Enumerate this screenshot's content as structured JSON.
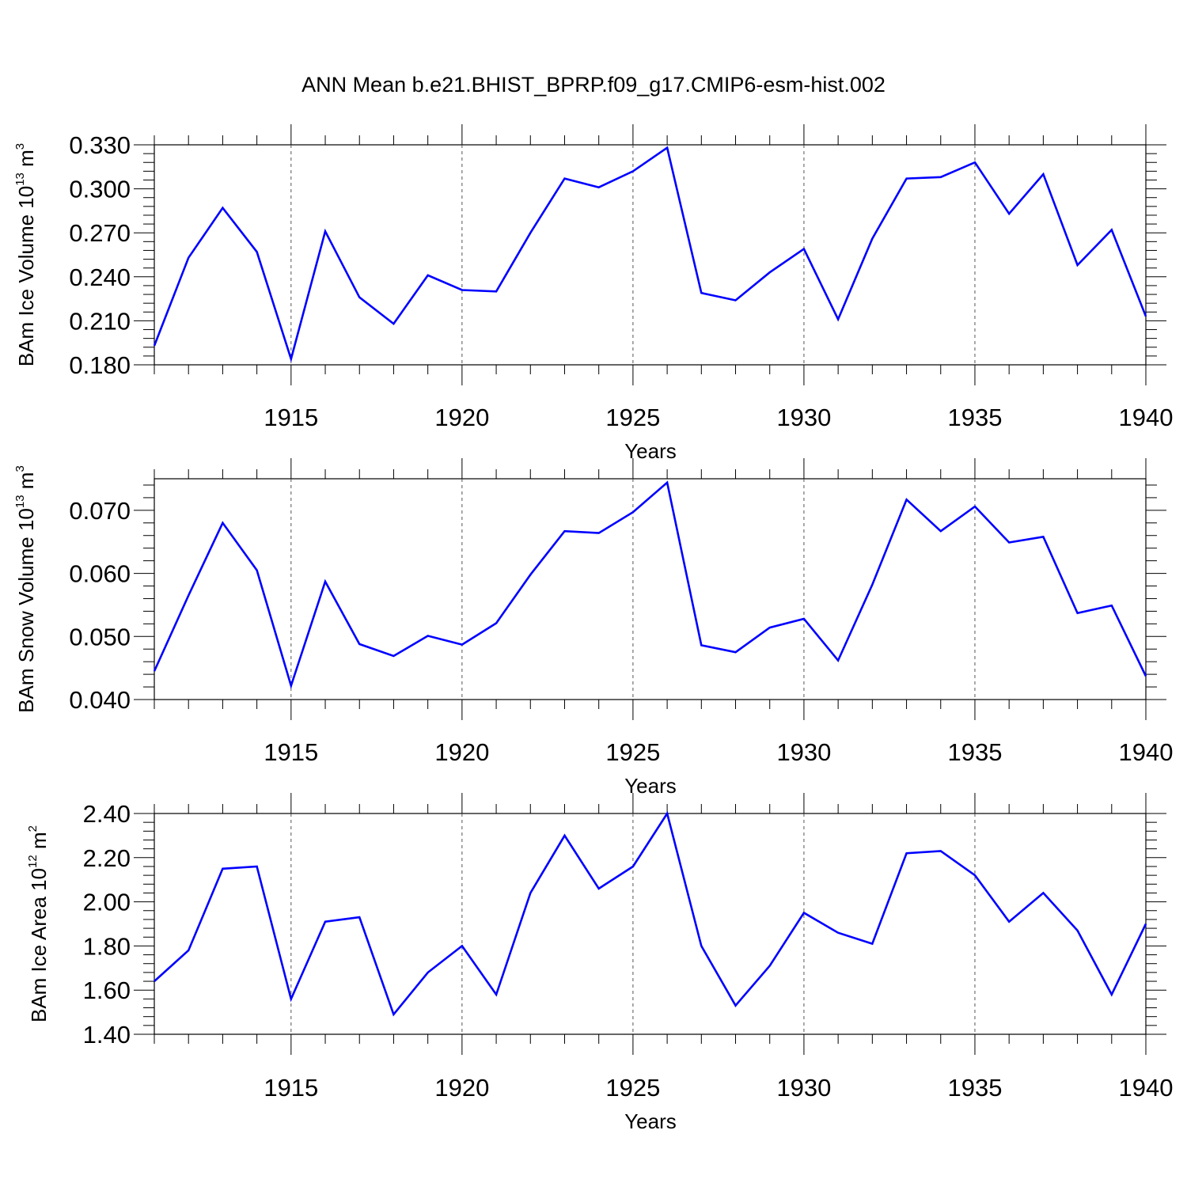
{
  "title": "ANN Mean b.e21.BHIST_BPRP.f09_g17.CMIP6-esm-hist.002",
  "colors": {
    "line": "#0000ff",
    "axis": "#000000",
    "grid": "#555555"
  },
  "chart_data": [
    {
      "type": "line",
      "ylabel": {
        "text": "BAm Ice Volume 10",
        "sup": "13",
        "unit": " m",
        "unit_sup": "3"
      },
      "xlabel": "Years",
      "xlim": [
        1911,
        1940
      ],
      "ylim": [
        0.18,
        0.33
      ],
      "xticks": [
        1915,
        1920,
        1925,
        1930,
        1935,
        1940
      ],
      "yticks": [
        "0.180",
        "0.210",
        "0.240",
        "0.270",
        "0.300",
        "0.330"
      ],
      "grid": "vertical dashed at major x ticks",
      "x": [
        1911,
        1912,
        1913,
        1914,
        1915,
        1916,
        1917,
        1918,
        1919,
        1920,
        1921,
        1922,
        1923,
        1924,
        1925,
        1926,
        1927,
        1928,
        1929,
        1930,
        1931,
        1932,
        1933,
        1934,
        1935,
        1936,
        1937,
        1938,
        1939,
        1940
      ],
      "series": [
        {
          "values": [
            0.193,
            0.253,
            0.287,
            0.257,
            0.184,
            0.271,
            0.226,
            0.208,
            0.241,
            0.231,
            0.23,
            0.27,
            0.307,
            0.301,
            0.312,
            0.328,
            0.229,
            0.224,
            0.243,
            0.259,
            0.211,
            0.266,
            0.307,
            0.308,
            0.318,
            0.283,
            0.31,
            0.248,
            0.272,
            0.213
          ]
        }
      ]
    },
    {
      "type": "line",
      "ylabel": {
        "text": "BAm Snow Volume 10",
        "sup": "13",
        "unit": " m",
        "unit_sup": "3"
      },
      "xlabel": "Years",
      "xlim": [
        1911,
        1940
      ],
      "ylim": [
        0.04,
        0.075
      ],
      "xticks": [
        1915,
        1920,
        1925,
        1930,
        1935,
        1940
      ],
      "yticks": [
        "0.040",
        "0.050",
        "0.060",
        "0.070"
      ],
      "grid": "vertical dashed at major x ticks",
      "x": [
        1911,
        1912,
        1913,
        1914,
        1915,
        1916,
        1917,
        1918,
        1919,
        1920,
        1921,
        1922,
        1923,
        1924,
        1925,
        1926,
        1927,
        1928,
        1929,
        1930,
        1931,
        1932,
        1933,
        1934,
        1935,
        1936,
        1937,
        1938,
        1939,
        1940
      ],
      "series": [
        {
          "values": [
            0.0445,
            0.0565,
            0.068,
            0.0605,
            0.0422,
            0.0587,
            0.0488,
            0.0469,
            0.0501,
            0.0487,
            0.0521,
            0.0598,
            0.0667,
            0.0664,
            0.0697,
            0.0744,
            0.0486,
            0.0475,
            0.0514,
            0.0528,
            0.0462,
            0.0582,
            0.0717,
            0.0667,
            0.0706,
            0.0649,
            0.0658,
            0.0537,
            0.0549,
            0.0437
          ]
        }
      ]
    },
    {
      "type": "line",
      "ylabel": {
        "text": "BAm Ice Area 10",
        "sup": "12",
        "unit": " m",
        "unit_sup": "2"
      },
      "xlabel": "Years",
      "xlim": [
        1911,
        1940
      ],
      "ylim": [
        1.4,
        2.4
      ],
      "xticks": [
        1915,
        1920,
        1925,
        1930,
        1935,
        1940
      ],
      "yticks": [
        "1.40",
        "1.60",
        "1.80",
        "2.00",
        "2.20",
        "2.40"
      ],
      "grid": "vertical dashed at major x ticks",
      "x": [
        1911,
        1912,
        1913,
        1914,
        1915,
        1916,
        1917,
        1918,
        1919,
        1920,
        1921,
        1922,
        1923,
        1924,
        1925,
        1926,
        1927,
        1928,
        1929,
        1930,
        1931,
        1932,
        1933,
        1934,
        1935,
        1936,
        1937,
        1938,
        1939,
        1940
      ],
      "series": [
        {
          "values": [
            1.64,
            1.78,
            2.15,
            2.16,
            1.56,
            1.91,
            1.93,
            1.49,
            1.68,
            1.8,
            1.58,
            2.04,
            2.3,
            2.06,
            2.16,
            2.4,
            1.8,
            1.53,
            1.71,
            1.95,
            1.86,
            1.81,
            2.22,
            2.23,
            2.12,
            1.91,
            2.04,
            1.87,
            1.58,
            1.9
          ]
        }
      ]
    }
  ]
}
